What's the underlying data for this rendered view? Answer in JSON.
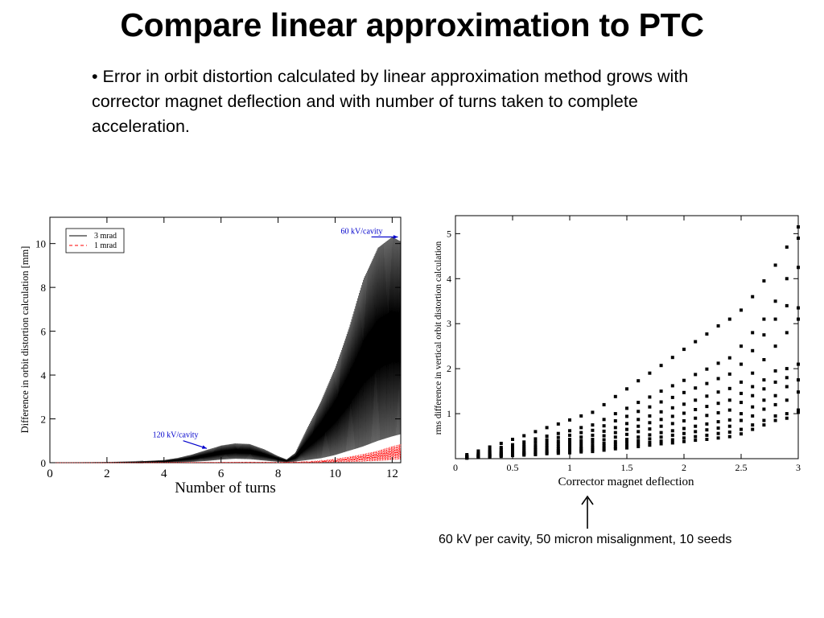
{
  "slide": {
    "title": "Compare linear approximation to PTC",
    "bullet": "• Error in orbit distortion calculated by linear approximation method grows with corrector magnet deflection and with number of turns taken to complete acceleration.",
    "caption": "60 kV per cavity, 50 micron misalignment, 10 seeds"
  },
  "chart_data": [
    {
      "type": "line",
      "xlabel": "Number of turns",
      "ylabel": "Difference in orbit distortion calculation [mm]",
      "xlim": [
        0,
        12.3
      ],
      "ylim": [
        0,
        11.2
      ],
      "xticks": [
        "0",
        "2",
        "4",
        "6",
        "8",
        "10",
        "12"
      ],
      "yticks": [
        "0",
        "2",
        "4",
        "6",
        "8",
        "10"
      ],
      "legend_position": "top-left",
      "grid": false,
      "series": [
        {
          "name": "3 mrad",
          "color": "#000000",
          "dash": "solid",
          "envelope": {
            "x": [
              0,
              1,
              2,
              3,
              4,
              4.5,
              5,
              5.5,
              6,
              6.5,
              7,
              7.5,
              8,
              8.3,
              8.6,
              9,
              9.5,
              10,
              10.5,
              11,
              11.5,
              12,
              12.3
            ],
            "ymax": [
              0,
              0.01,
              0.02,
              0.05,
              0.12,
              0.22,
              0.38,
              0.58,
              0.78,
              0.88,
              0.85,
              0.62,
              0.3,
              0.15,
              0.45,
              1.5,
              2.8,
              4.3,
              6.2,
              8.4,
              9.8,
              10.3,
              10.1
            ],
            "ymin": [
              0,
              0,
              0,
              0,
              0,
              0.02,
              0.04,
              0.08,
              0.14,
              0.18,
              0.16,
              0.1,
              0.04,
              0.02,
              0.05,
              0.12,
              0.2,
              0.35,
              0.55,
              0.75,
              1.0,
              1.2,
              1.3
            ]
          }
        },
        {
          "name": "1 mrad",
          "color": "#ff0000",
          "dash": "dashed",
          "envelope": {
            "x": [
              0,
              2,
              4,
              6,
              7,
              8,
              9,
              9.5,
              10,
              10.5,
              11,
              11.5,
              12,
              12.3
            ],
            "ymax": [
              0,
              0,
              0.01,
              0.02,
              0.03,
              0.02,
              0.05,
              0.1,
              0.18,
              0.28,
              0.4,
              0.55,
              0.75,
              0.85
            ],
            "ymin": [
              0,
              0,
              0,
              0,
              0,
              0,
              0,
              0.01,
              0.02,
              0.03,
              0.05,
              0.08,
              0.12,
              0.15
            ]
          }
        }
      ],
      "annotations": [
        {
          "text": "60 kV/cavity",
          "x": 10.2,
          "y": 10.45,
          "target_x": 12.2,
          "target_y": 10.3,
          "color": "#0000cc"
        },
        {
          "text": "120 kV/cavity",
          "x": 3.6,
          "y": 1.15,
          "target_x": 5.5,
          "target_y": 0.65,
          "color": "#0000cc"
        }
      ]
    },
    {
      "type": "scatter",
      "xlabel": "Corrector magnet deflection",
      "ylabel": "rms difference in vertical orbit distortion calculation",
      "xlim": [
        0,
        3
      ],
      "ylim": [
        0,
        5.4
      ],
      "xticks": [
        "0",
        "0.5",
        "1",
        "1.5",
        "2",
        "2.5",
        "3"
      ],
      "yticks": [
        "1",
        "2",
        "3",
        "4",
        "5"
      ],
      "grid": false,
      "marker_color": "#000000",
      "x": [
        0.1,
        0.2,
        0.3,
        0.4,
        0.5,
        0.6,
        0.7,
        0.8,
        0.9,
        1.0,
        1.1,
        1.2,
        1.3,
        1.4,
        1.5,
        1.6,
        1.7,
        1.8,
        1.9,
        2.0,
        2.1,
        2.2,
        2.3,
        2.4,
        2.5,
        2.6,
        2.7,
        2.8,
        2.9,
        3.0
      ],
      "series": [
        {
          "values": [
            0.09,
            0.17,
            0.26,
            0.34,
            0.43,
            0.51,
            0.6,
            0.69,
            0.77,
            0.86,
            0.95,
            1.03,
            1.2,
            1.38,
            1.55,
            1.73,
            1.9,
            2.07,
            2.25,
            2.43,
            2.6,
            2.77,
            2.95,
            3.1,
            3.3,
            3.6,
            3.95,
            4.3,
            4.7,
            5.15
          ]
        },
        {
          "values": [
            0.06,
            0.12,
            0.19,
            0.25,
            0.31,
            0.37,
            0.44,
            0.5,
            0.56,
            0.62,
            0.69,
            0.75,
            0.87,
            1.0,
            1.12,
            1.25,
            1.37,
            1.5,
            1.62,
            1.74,
            1.87,
            1.99,
            2.12,
            2.24,
            2.5,
            2.8,
            3.1,
            3.5,
            4.0,
            4.9
          ]
        },
        {
          "values": [
            0.05,
            0.1,
            0.16,
            0.21,
            0.26,
            0.31,
            0.37,
            0.42,
            0.47,
            0.52,
            0.58,
            0.63,
            0.73,
            0.84,
            0.94,
            1.05,
            1.15,
            1.26,
            1.36,
            1.47,
            1.57,
            1.67,
            1.78,
            1.88,
            2.1,
            2.4,
            2.75,
            3.1,
            3.4,
            4.25
          ]
        },
        {
          "values": [
            0.04,
            0.09,
            0.13,
            0.17,
            0.22,
            0.26,
            0.3,
            0.35,
            0.39,
            0.43,
            0.48,
            0.52,
            0.61,
            0.69,
            0.78,
            0.87,
            0.95,
            1.04,
            1.13,
            1.21,
            1.3,
            1.39,
            1.48,
            1.56,
            1.7,
            1.9,
            2.2,
            2.5,
            2.8,
            3.35
          ]
        },
        {
          "values": [
            0.04,
            0.07,
            0.11,
            0.14,
            0.18,
            0.22,
            0.25,
            0.29,
            0.33,
            0.36,
            0.4,
            0.43,
            0.51,
            0.58,
            0.65,
            0.72,
            0.8,
            0.87,
            0.94,
            1.01,
            1.09,
            1.16,
            1.23,
            1.3,
            1.45,
            1.6,
            1.75,
            1.95,
            2.0,
            3.1
          ]
        },
        {
          "values": [
            0.03,
            0.06,
            0.09,
            0.12,
            0.15,
            0.18,
            0.21,
            0.24,
            0.27,
            0.3,
            0.33,
            0.36,
            0.42,
            0.48,
            0.54,
            0.6,
            0.66,
            0.72,
            0.78,
            0.84,
            0.9,
            0.96,
            1.02,
            1.08,
            1.25,
            1.4,
            1.55,
            1.7,
            1.8,
            2.1
          ]
        },
        {
          "values": [
            0.02,
            0.05,
            0.07,
            0.1,
            0.12,
            0.14,
            0.17,
            0.19,
            0.22,
            0.24,
            0.26,
            0.29,
            0.34,
            0.38,
            0.43,
            0.48,
            0.53,
            0.58,
            0.62,
            0.67,
            0.72,
            0.77,
            0.82,
            0.86,
            1.0,
            1.15,
            1.3,
            1.4,
            1.6,
            1.75
          ]
        },
        {
          "values": [
            0.02,
            0.04,
            0.06,
            0.08,
            0.1,
            0.12,
            0.14,
            0.16,
            0.18,
            0.2,
            0.22,
            0.24,
            0.28,
            0.32,
            0.36,
            0.4,
            0.44,
            0.48,
            0.52,
            0.56,
            0.6,
            0.64,
            0.68,
            0.72,
            0.85,
            0.95,
            1.1,
            1.2,
            1.3,
            1.48
          ]
        },
        {
          "values": [
            0.02,
            0.03,
            0.05,
            0.07,
            0.08,
            0.1,
            0.11,
            0.13,
            0.15,
            0.16,
            0.18,
            0.2,
            0.23,
            0.26,
            0.29,
            0.33,
            0.36,
            0.39,
            0.42,
            0.46,
            0.49,
            0.52,
            0.56,
            0.59,
            0.65,
            0.75,
            0.85,
            0.95,
            1.0,
            1.08
          ]
        },
        {
          "values": [
            0.01,
            0.03,
            0.04,
            0.05,
            0.07,
            0.08,
            0.09,
            0.11,
            0.12,
            0.13,
            0.15,
            0.16,
            0.19,
            0.22,
            0.24,
            0.27,
            0.3,
            0.33,
            0.35,
            0.38,
            0.41,
            0.43,
            0.46,
            0.49,
            0.55,
            0.65,
            0.75,
            0.85,
            0.9,
            1.03
          ]
        }
      ]
    }
  ]
}
